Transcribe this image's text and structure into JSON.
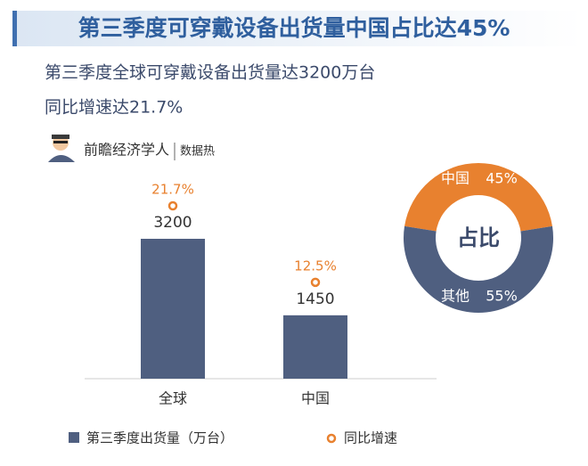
{
  "header": {
    "title": "第三季度可穿戴设备出货量中国占比达45%",
    "subtitle": [
      "第三季度全球可穿戴设备出货量达3200万台",
      "同比增速达21.7%"
    ],
    "source": "前瞻经济学人",
    "source_tag": "数据热"
  },
  "chart_data": [
    {
      "type": "bar",
      "categories": [
        "全球",
        "中国"
      ],
      "series": [
        {
          "name": "第三季度出货量（万台）",
          "color": "#4f5f80",
          "values": [
            3200,
            1450
          ]
        },
        {
          "name": "同比增速",
          "color": "#e8812f",
          "values": [
            21.7,
            12.5
          ],
          "value_labels": [
            "21.7%",
            "12.5%"
          ]
        }
      ]
    },
    {
      "type": "pie",
      "center_label": "占比",
      "categories": [
        "中国",
        "其他"
      ],
      "values": [
        45,
        55
      ],
      "value_labels": [
        "45%",
        "55%"
      ],
      "colors": [
        "#e8812f",
        "#4f5f80"
      ]
    }
  ]
}
